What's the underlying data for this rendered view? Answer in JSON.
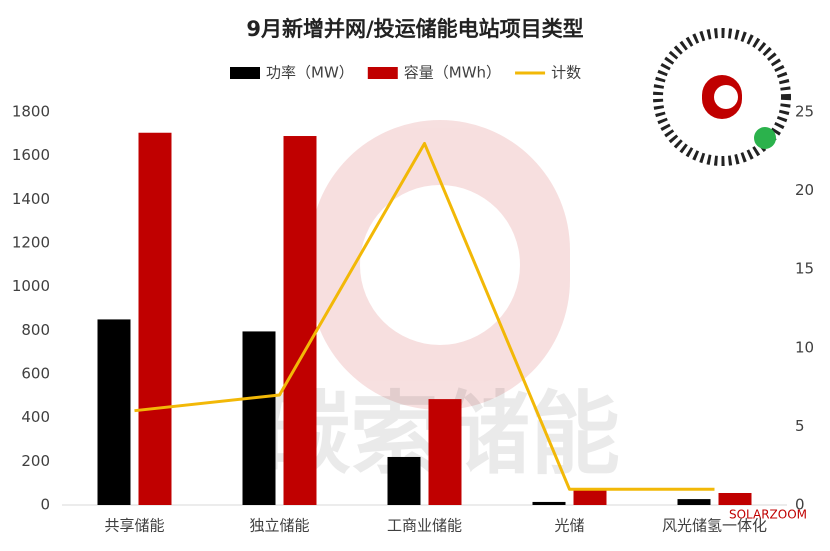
{
  "chart_data": {
    "type": "bar",
    "title": "9月新增并网/投运储能电站项目类型",
    "categories": [
      "共享储能",
      "独立储能",
      "工商业储能",
      "光储",
      "风光储氢一体化"
    ],
    "series": [
      {
        "name": "功率（MW）",
        "color": "#000000",
        "type": "bar",
        "values": [
          850,
          795,
          220,
          14,
          27
        ]
      },
      {
        "name": "容量（MWh）",
        "color": "#c00000",
        "type": "bar",
        "values": [
          1705,
          1690,
          485,
          70,
          55
        ]
      },
      {
        "name": "计数",
        "color": "#f2b807",
        "type": "line",
        "axis": "y2",
        "values": [
          6,
          7,
          23,
          1,
          1
        ]
      }
    ],
    "ylim": [
      0,
      1800
    ],
    "yticks": [
      0,
      200,
      400,
      600,
      800,
      1000,
      1200,
      1400,
      1600,
      1800
    ],
    "y2lim": [
      0,
      25
    ],
    "y2ticks": [
      0,
      5,
      10,
      15,
      20,
      25
    ],
    "grid": false,
    "legend": "top",
    "watermark": "碳索储能",
    "brand": "SOLARZOOM"
  }
}
